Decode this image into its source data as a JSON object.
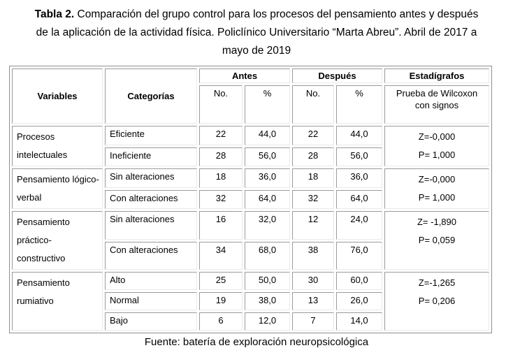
{
  "title": {
    "line1_bold": "Tabla 2.",
    "line1_rest": " Comparación del grupo control para los procesos del pensamiento antes y después",
    "line2": "de la aplicación de la actividad física. Policlínico Universitario “Marta Abreu”. Abril de 2017 a",
    "line3": "mayo de 2019"
  },
  "table": {
    "headers": {
      "variables": "Variables",
      "categorias": "Categorías",
      "antes": "Antes",
      "despues": "Después",
      "estadigrafos": "Estadígrafos",
      "no_label": "No.",
      "pct_label": "%",
      "prueba_label": "Prueba de Wilcoxon con signos"
    },
    "sections": [
      {
        "variable": "Procesos intelectuales",
        "z": "Z=-0,000",
        "p": "P= 1,000",
        "rows": [
          {
            "categoria": "Eficiente",
            "antes_no": "22",
            "antes_pct": "44,0",
            "despues_no": "22",
            "despues_pct": "44,0"
          },
          {
            "categoria": "Ineficiente",
            "antes_no": "28",
            "antes_pct": "56,0",
            "despues_no": "28",
            "despues_pct": "56,0"
          }
        ]
      },
      {
        "variable": "Pensamiento lógico-verbal",
        "z": "Z=-0,000",
        "p": "P= 1,000",
        "rows": [
          {
            "categoria": "Sin alteraciones",
            "antes_no": "18",
            "antes_pct": "36,0",
            "despues_no": "18",
            "despues_pct": "36,0"
          },
          {
            "categoria": "Con alteraciones",
            "antes_no": "32",
            "antes_pct": "64,0",
            "despues_no": "32",
            "despues_pct": "64,0"
          }
        ]
      },
      {
        "variable": "Pensamiento práctico-constructivo",
        "z": "Z= -1,890",
        "p": "P= 0,059",
        "rows": [
          {
            "categoria": "Sin alteraciones",
            "antes_no": "16",
            "antes_pct": "32,0",
            "despues_no": "12",
            "despues_pct": "24,0"
          },
          {
            "categoria": "Con alteraciones",
            "antes_no": "34",
            "antes_pct": "68,0",
            "despues_no": "38",
            "despues_pct": "76,0"
          }
        ]
      },
      {
        "variable": "Pensamiento rumiativo",
        "z": "Z=-1,265",
        "p": "P= 0,206",
        "rows": [
          {
            "categoria": "Alto",
            "antes_no": "25",
            "antes_pct": "50,0",
            "despues_no": "30",
            "despues_pct": "60,0"
          },
          {
            "categoria": "Normal",
            "antes_no": "19",
            "antes_pct": "38,0",
            "despues_no": "13",
            "despues_pct": "26,0"
          },
          {
            "categoria": "Bajo",
            "antes_no": "6",
            "antes_pct": "12,0",
            "despues_no": "7",
            "despues_pct": "14,0"
          }
        ]
      }
    ]
  },
  "footer": {
    "text": "Fuente: batería de exploración neuropsicológica"
  },
  "colors": {
    "background": "#ffffff",
    "text": "#000000",
    "table_outer_border": "#8f8f8f",
    "cell_border_dark": "#9b9b9b",
    "cell_border_light": "#e9e9e9"
  }
}
